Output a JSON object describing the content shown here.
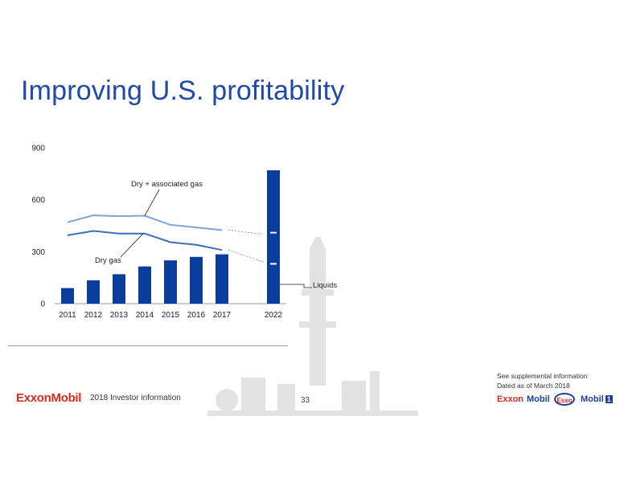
{
  "slide": {
    "title": "Improving U.S. profitability",
    "page_number": "33",
    "footer_text": "2018 Investor information",
    "logo_text": "ExxonMobil",
    "supplemental": [
      "See supplemental information",
      "Dated as of March 2018"
    ],
    "brands": {
      "exxon": "Exxon",
      "mobil": "Mobil",
      "esso": "Esso",
      "mobil1": "Mobil",
      "mobil1_badge": "1"
    }
  },
  "colors": {
    "bar": "#0b3d9c",
    "dry_assoc_line": "#7ea6d4",
    "dry_gas_line": "#3c6fb4",
    "title": "#1f4aa8",
    "axis": "#9a9a9a"
  },
  "chart_data": {
    "type": "bar",
    "categories": [
      "2011",
      "2012",
      "2013",
      "2014",
      "2015",
      "2016",
      "2017",
      "2022"
    ],
    "yticks": [
      0,
      300,
      600,
      900
    ],
    "ylim": [
      0,
      900
    ],
    "series": [
      {
        "name": "Liquids",
        "type": "bar",
        "values": [
          90,
          135,
          170,
          215,
          250,
          270,
          285,
          770
        ]
      },
      {
        "name": "Dry + associated gas",
        "type": "line",
        "values": [
          470,
          510,
          505,
          508,
          455,
          440,
          425,
          null
        ],
        "projection_2022": 400
      },
      {
        "name": "Dry gas",
        "type": "line",
        "values": [
          395,
          420,
          405,
          405,
          355,
          340,
          310,
          null
        ],
        "projection_2022": 240
      }
    ],
    "markers_2022": [
      410,
      230
    ],
    "annotations": {
      "dry_assoc_label": "Dry + associated gas",
      "dry_gas_label": "Dry gas",
      "liquids_label": "Liquids"
    }
  }
}
